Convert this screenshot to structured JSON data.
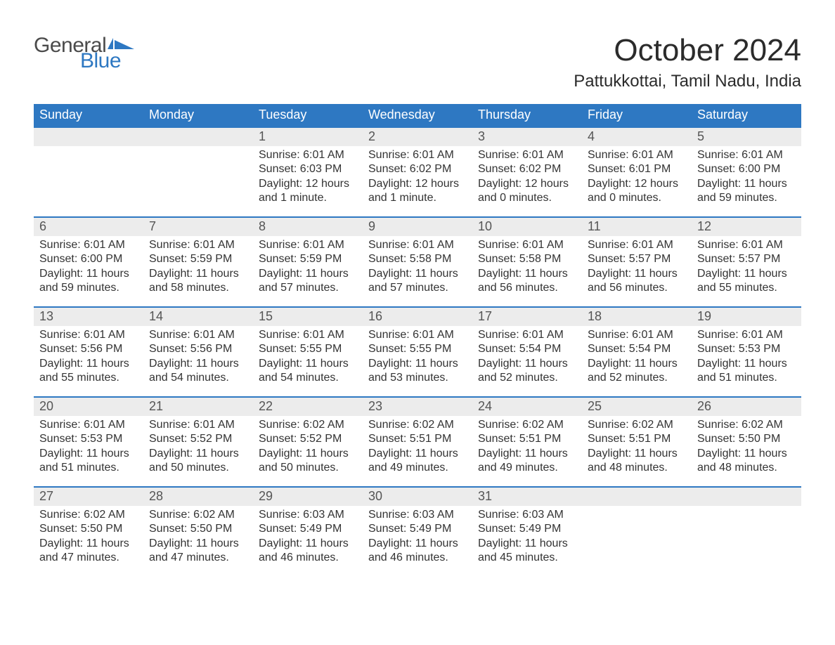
{
  "brand": {
    "word1": "General",
    "word2": "Blue",
    "flag_color": "#2e78c2",
    "word1_color": "#4b4b4b",
    "word2_color": "#2e78c2"
  },
  "title": "October 2024",
  "location": "Pattukkottai, Tamil Nadu, India",
  "colors": {
    "header_bg": "#2e78c2",
    "header_text": "#ffffff",
    "daynum_bg": "#ececec",
    "row_border": "#2e78c2",
    "body_text": "#333333",
    "background": "#ffffff"
  },
  "weekdays": [
    "Sunday",
    "Monday",
    "Tuesday",
    "Wednesday",
    "Thursday",
    "Friday",
    "Saturday"
  ],
  "weeks": [
    [
      null,
      null,
      {
        "n": "1",
        "sunrise": "6:01 AM",
        "sunset": "6:03 PM",
        "daylight": "12 hours and 1 minute."
      },
      {
        "n": "2",
        "sunrise": "6:01 AM",
        "sunset": "6:02 PM",
        "daylight": "12 hours and 1 minute."
      },
      {
        "n": "3",
        "sunrise": "6:01 AM",
        "sunset": "6:02 PM",
        "daylight": "12 hours and 0 minutes."
      },
      {
        "n": "4",
        "sunrise": "6:01 AM",
        "sunset": "6:01 PM",
        "daylight": "12 hours and 0 minutes."
      },
      {
        "n": "5",
        "sunrise": "6:01 AM",
        "sunset": "6:00 PM",
        "daylight": "11 hours and 59 minutes."
      }
    ],
    [
      {
        "n": "6",
        "sunrise": "6:01 AM",
        "sunset": "6:00 PM",
        "daylight": "11 hours and 59 minutes."
      },
      {
        "n": "7",
        "sunrise": "6:01 AM",
        "sunset": "5:59 PM",
        "daylight": "11 hours and 58 minutes."
      },
      {
        "n": "8",
        "sunrise": "6:01 AM",
        "sunset": "5:59 PM",
        "daylight": "11 hours and 57 minutes."
      },
      {
        "n": "9",
        "sunrise": "6:01 AM",
        "sunset": "5:58 PM",
        "daylight": "11 hours and 57 minutes."
      },
      {
        "n": "10",
        "sunrise": "6:01 AM",
        "sunset": "5:58 PM",
        "daylight": "11 hours and 56 minutes."
      },
      {
        "n": "11",
        "sunrise": "6:01 AM",
        "sunset": "5:57 PM",
        "daylight": "11 hours and 56 minutes."
      },
      {
        "n": "12",
        "sunrise": "6:01 AM",
        "sunset": "5:57 PM",
        "daylight": "11 hours and 55 minutes."
      }
    ],
    [
      {
        "n": "13",
        "sunrise": "6:01 AM",
        "sunset": "5:56 PM",
        "daylight": "11 hours and 55 minutes."
      },
      {
        "n": "14",
        "sunrise": "6:01 AM",
        "sunset": "5:56 PM",
        "daylight": "11 hours and 54 minutes."
      },
      {
        "n": "15",
        "sunrise": "6:01 AM",
        "sunset": "5:55 PM",
        "daylight": "11 hours and 54 minutes."
      },
      {
        "n": "16",
        "sunrise": "6:01 AM",
        "sunset": "5:55 PM",
        "daylight": "11 hours and 53 minutes."
      },
      {
        "n": "17",
        "sunrise": "6:01 AM",
        "sunset": "5:54 PM",
        "daylight": "11 hours and 52 minutes."
      },
      {
        "n": "18",
        "sunrise": "6:01 AM",
        "sunset": "5:54 PM",
        "daylight": "11 hours and 52 minutes."
      },
      {
        "n": "19",
        "sunrise": "6:01 AM",
        "sunset": "5:53 PM",
        "daylight": "11 hours and 51 minutes."
      }
    ],
    [
      {
        "n": "20",
        "sunrise": "6:01 AM",
        "sunset": "5:53 PM",
        "daylight": "11 hours and 51 minutes."
      },
      {
        "n": "21",
        "sunrise": "6:01 AM",
        "sunset": "5:52 PM",
        "daylight": "11 hours and 50 minutes."
      },
      {
        "n": "22",
        "sunrise": "6:02 AM",
        "sunset": "5:52 PM",
        "daylight": "11 hours and 50 minutes."
      },
      {
        "n": "23",
        "sunrise": "6:02 AM",
        "sunset": "5:51 PM",
        "daylight": "11 hours and 49 minutes."
      },
      {
        "n": "24",
        "sunrise": "6:02 AM",
        "sunset": "5:51 PM",
        "daylight": "11 hours and 49 minutes."
      },
      {
        "n": "25",
        "sunrise": "6:02 AM",
        "sunset": "5:51 PM",
        "daylight": "11 hours and 48 minutes."
      },
      {
        "n": "26",
        "sunrise": "6:02 AM",
        "sunset": "5:50 PM",
        "daylight": "11 hours and 48 minutes."
      }
    ],
    [
      {
        "n": "27",
        "sunrise": "6:02 AM",
        "sunset": "5:50 PM",
        "daylight": "11 hours and 47 minutes."
      },
      {
        "n": "28",
        "sunrise": "6:02 AM",
        "sunset": "5:50 PM",
        "daylight": "11 hours and 47 minutes."
      },
      {
        "n": "29",
        "sunrise": "6:03 AM",
        "sunset": "5:49 PM",
        "daylight": "11 hours and 46 minutes."
      },
      {
        "n": "30",
        "sunrise": "6:03 AM",
        "sunset": "5:49 PM",
        "daylight": "11 hours and 46 minutes."
      },
      {
        "n": "31",
        "sunrise": "6:03 AM",
        "sunset": "5:49 PM",
        "daylight": "11 hours and 45 minutes."
      },
      null,
      null
    ]
  ],
  "labels": {
    "sunrise_prefix": "Sunrise: ",
    "sunset_prefix": "Sunset: ",
    "daylight_prefix": "Daylight: "
  }
}
